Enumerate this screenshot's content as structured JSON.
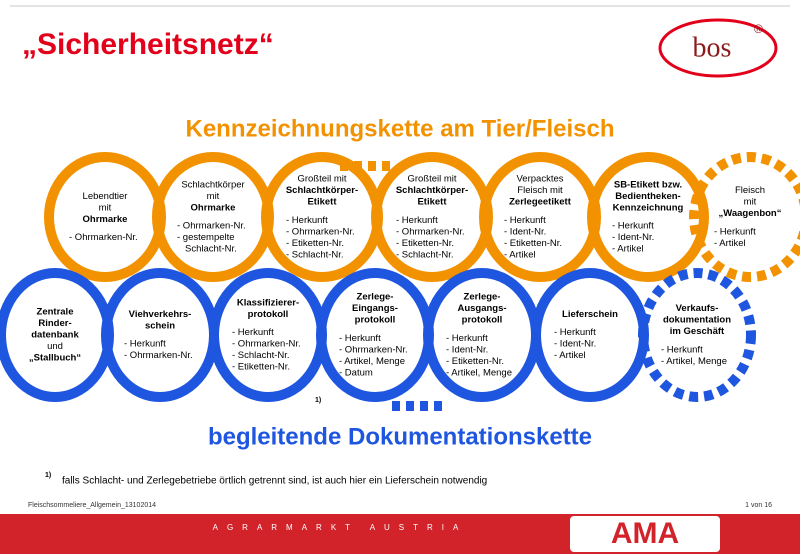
{
  "header": {
    "title": "„Sicherheitsnetz“",
    "logo": "bos",
    "logo_mark": "®"
  },
  "chain_top": {
    "title": "Kennzeichnungskette am Tier/Fleisch",
    "nodes": [
      {
        "heading": [
          {
            "text": "Lebendtier",
            "bold": false
          },
          {
            "text": "mit",
            "bold": false
          },
          {
            "text": "Ohrmarke",
            "bold": true
          }
        ],
        "items": [
          "- Ohrmarken-Nr."
        ],
        "dashed": false
      },
      {
        "heading": [
          {
            "text": "Schlachtkörper",
            "bold": false
          },
          {
            "text": "mit",
            "bold": false
          },
          {
            "text": "Ohrmarke",
            "bold": true
          }
        ],
        "items": [
          "- Ohrmarken-Nr.",
          "- gestempelte",
          "Schlacht-Nr."
        ],
        "dashed": false
      },
      {
        "heading": [
          {
            "text": "Großteil mit",
            "bold": false
          },
          {
            "text": "Schlachtkörper-",
            "bold": true
          },
          {
            "text": "Etikett",
            "bold": true
          }
        ],
        "items": [
          "- Herkunft",
          "- Ohrmarken-Nr.",
          "- Etiketten-Nr.",
          "- Schlacht-Nr."
        ],
        "dashed": false
      },
      {
        "heading": [
          {
            "text": "Großteil mit",
            "bold": false
          },
          {
            "text": "Schlachtkörper-",
            "bold": true
          },
          {
            "text": "Etikett",
            "bold": true
          }
        ],
        "items": [
          "- Herkunft",
          "- Ohrmarken-Nr.",
          "- Etiketten-Nr.",
          "- Schlacht-Nr."
        ],
        "dashed": false
      },
      {
        "heading": [
          {
            "text": "Verpacktes",
            "bold": false
          },
          {
            "text": "Fleisch mit",
            "bold": false
          },
          {
            "text": "Zerlegeetikett",
            "bold": true
          }
        ],
        "items": [
          "- Herkunft",
          "- Ident-Nr.",
          "- Etiketten-Nr.",
          "- Artikel"
        ],
        "dashed": false
      },
      {
        "heading": [
          {
            "text": "SB-Etikett bzw.",
            "bold": true
          },
          {
            "text": "Bedientheken-",
            "bold": true
          },
          {
            "text": "Kennzeichnung",
            "bold": true
          }
        ],
        "items": [
          "- Herkunft",
          "- Ident-Nr.",
          "- Artikel"
        ],
        "dashed": false
      },
      {
        "heading": [
          {
            "text": "Fleisch",
            "bold": false
          },
          {
            "text": "mit",
            "bold": false
          },
          {
            "text": "„Waagenbon“",
            "bold": true
          }
        ],
        "items": [
          "- Herkunft",
          "- Artikel"
        ],
        "dashed": true
      }
    ]
  },
  "chain_bottom": {
    "title": "begleitende Dokumentationskette",
    "nodes": [
      {
        "heading": [
          {
            "text": "Zentrale",
            "bold": true
          },
          {
            "text": "Rinder-",
            "bold": true
          },
          {
            "text": "datenbank",
            "bold": true
          },
          {
            "text": "und",
            "bold": false
          },
          {
            "text": "„Stallbuch“",
            "bold": true
          }
        ],
        "items": [],
        "dashed": false
      },
      {
        "heading": [
          {
            "text": "Viehverkehrs-",
            "bold": true
          },
          {
            "text": "schein",
            "bold": true
          }
        ],
        "items": [
          "- Herkunft",
          "- Ohrmarken-Nr."
        ],
        "dashed": false
      },
      {
        "heading": [
          {
            "text": "Klassifizierer-",
            "bold": true
          },
          {
            "text": "protokoll",
            "bold": true
          }
        ],
        "items": [
          "- Herkunft",
          "- Ohrmarken-Nr.",
          "- Schlacht-Nr.",
          "- Etiketten-Nr."
        ],
        "dashed": false
      },
      {
        "heading": [
          {
            "text": "Zerlege-",
            "bold": true
          },
          {
            "text": "Eingangs-",
            "bold": true
          },
          {
            "text": "protokoll",
            "bold": true
          }
        ],
        "items": [
          "- Herkunft",
          "- Ohrmarken-Nr.",
          "- Artikel, Menge",
          "- Datum"
        ],
        "dashed": false
      },
      {
        "heading": [
          {
            "text": "Zerlege-",
            "bold": true
          },
          {
            "text": "Ausgangs-",
            "bold": true
          },
          {
            "text": "protokoll",
            "bold": true
          }
        ],
        "items": [
          "- Herkunft",
          "- Ident-Nr.",
          "- Etiketten-Nr.",
          "- Artikel, Menge"
        ],
        "dashed": false
      },
      {
        "heading": [
          {
            "text": "Lieferschein",
            "bold": true
          }
        ],
        "items": [
          "- Herkunft",
          "- Ident-Nr.",
          "- Artikel"
        ],
        "dashed": false
      },
      {
        "heading": [
          {
            "text": "Verkaufs-",
            "bold": true
          },
          {
            "text": "dokumentation",
            "bold": true
          },
          {
            "text": "im Geschäft",
            "bold": true
          }
        ],
        "items": [
          "- Herkunft",
          "- Artikel, Menge"
        ],
        "dashed": true
      }
    ]
  },
  "footnote": {
    "marker": "1)",
    "text": "falls Schlacht- und Zerlegebetriebe örtlich getrennt sind, ist auch hier ein Lieferschein notwendig"
  },
  "footer": {
    "file": "Fleischsommeliere_Allgemein_13102014",
    "page": "1 von 16",
    "band": "AGRARMARKT AUSTRIA",
    "logo": "AMA"
  }
}
